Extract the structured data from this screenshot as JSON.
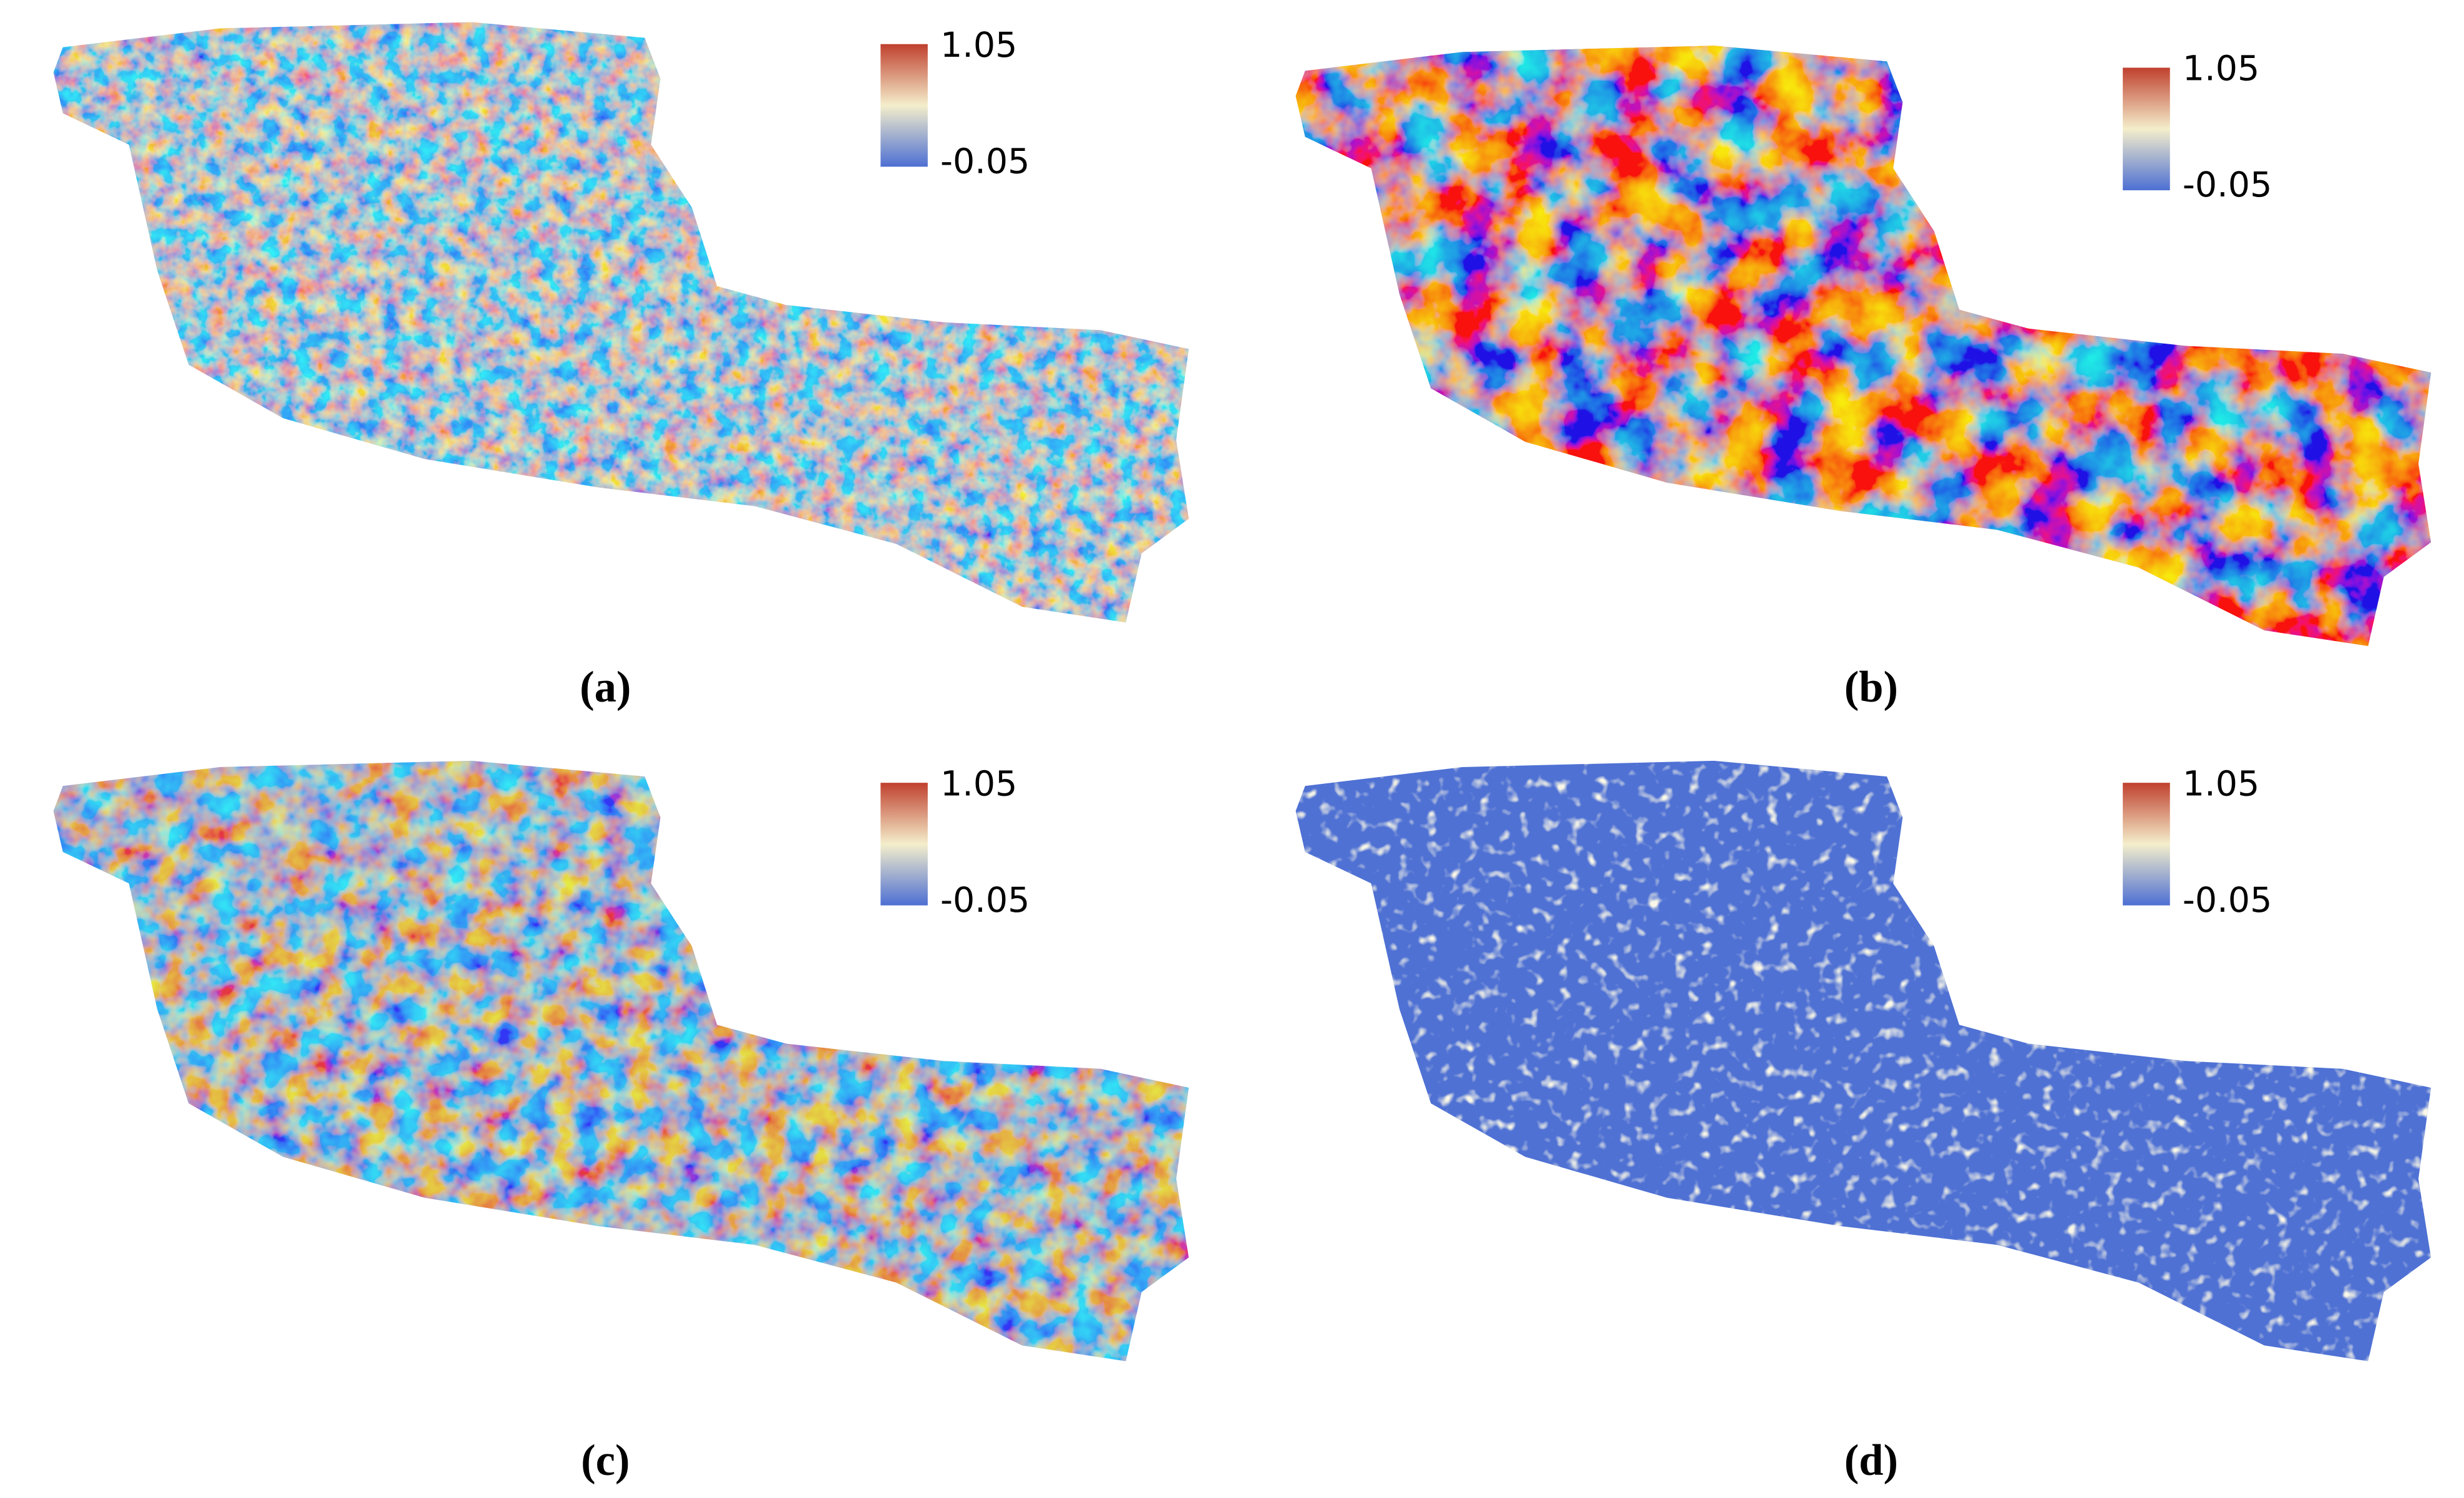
{
  "panels": [
    {
      "caption": "(a)",
      "colorbar": {
        "max": "1.05",
        "min": "-0.05"
      }
    },
    {
      "caption": "(b)",
      "colorbar": {
        "max": "1.05",
        "min": "-0.05"
      }
    },
    {
      "caption": "(c)",
      "colorbar": {
        "max": "1.05",
        "min": "-0.05"
      }
    },
    {
      "caption": "(d)",
      "colorbar": {
        "max": "1.05",
        "min": "-0.05"
      }
    }
  ]
}
